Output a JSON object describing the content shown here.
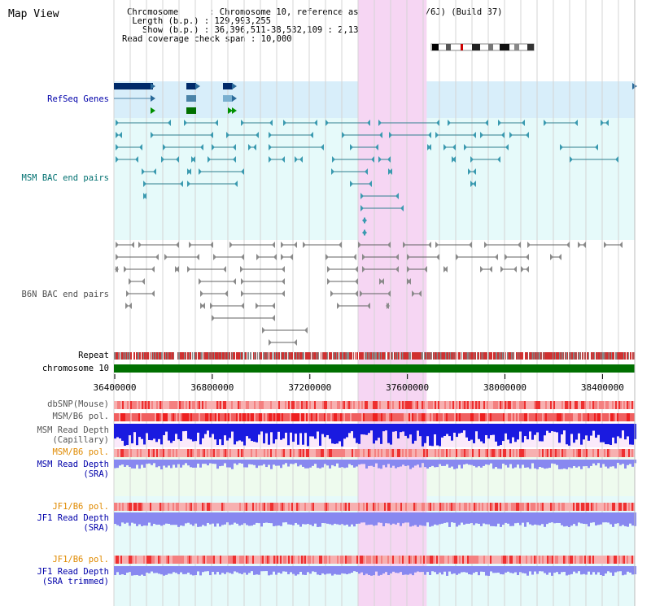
{
  "page": {
    "title": "Map View",
    "info": {
      "chromosome": "Chromosome      : Chromosome 10, reference assembly (C57BL/6J) (Build 37)",
      "length": " Length (b.p.) : 129,993,255",
      "show": "   Show (b.p.) : 36,396,511-38,532,109 : 2,135,599 bp",
      "span": "Read coverage check span : 10,000"
    }
  },
  "tracks": {
    "refseq": {
      "label": "RefSeq Genes",
      "color": "#0000aa"
    },
    "msm_bac": {
      "label": "MSM BAC end pairs",
      "color": "#007070"
    },
    "b6n_bac": {
      "label": "B6N BAC end pairs",
      "color": "#505050"
    },
    "repeat": {
      "label": "Repeat"
    },
    "chromosome": {
      "label": "chromosome 10"
    },
    "dbsnp": {
      "label": "dbSNP(Mouse)"
    },
    "msm_b6_pol": {
      "label": "MSM/B6 pol."
    },
    "msm_read_cap": {
      "line1": "MSM Read Depth",
      "line2": "(Capillary)"
    },
    "msm_b6_pol2": {
      "label": "MSM/B6 pol."
    },
    "msm_read_sra": {
      "line1": "MSM Read Depth",
      "line2": "(SRA)"
    },
    "jf1_b6_pol": {
      "label": "JF1/B6 pol."
    },
    "jf1_read_sra": {
      "line1": "JF1 Read Depth",
      "line2": "(SRA)"
    },
    "jf1_b6_pol2": {
      "label": "JF1/B6 pol."
    },
    "jf1_read_trim": {
      "line1": "JF1 Read Depth",
      "line2": "(SRA trimmed)"
    }
  },
  "axis": {
    "ticks": [
      "36400000",
      "36800000",
      "37200000",
      "37600000",
      "38000000",
      "38400000"
    ],
    "tick_values": [
      36400000,
      36800000,
      37200000,
      37600000,
      38000000,
      38400000
    ],
    "range": [
      36396511,
      38532109
    ],
    "highlight_range": [
      37399000,
      37679000
    ]
  },
  "colors": {
    "highlight": "#f6d6f3",
    "refseq_bg": "#d8eefa",
    "track_bg": "#e6fafa",
    "msm_sra_bg": "#eefbee",
    "chromosome_bar": "#007000",
    "depth_blue": "#1a1ae0",
    "depth_light": "#8888f0",
    "snp_red": "#ee2222",
    "orange_label": "#e08a00",
    "teal_label": "#007070",
    "blue_label": "#0000aa"
  }
}
